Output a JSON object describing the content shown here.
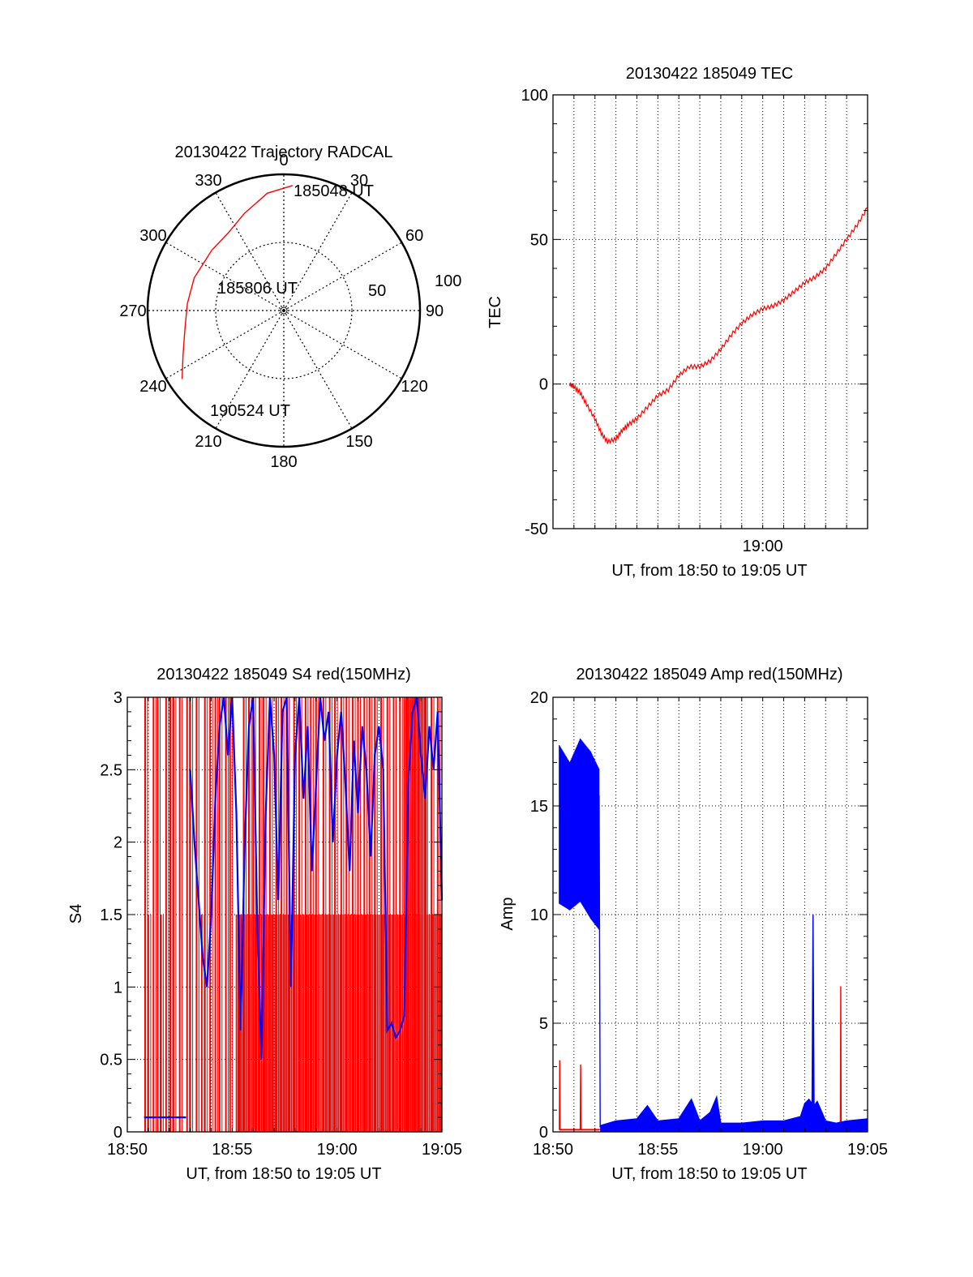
{
  "colors": {
    "red": "#ff0000",
    "blue": "#0000ff",
    "axis": "#000000",
    "grid": "#000000"
  },
  "chart_data": [
    {
      "id": "trajectory",
      "type": "polar",
      "title": "20130422 Trajectory RADCAL",
      "angle_labels": [
        "0",
        "30",
        "60",
        "90",
        "120",
        "150",
        "180",
        "210",
        "240",
        "270",
        "300",
        "330"
      ],
      "radial_labels": [
        "50",
        "100"
      ],
      "rlim": [
        0,
        100
      ],
      "grid": true,
      "series": [
        {
          "color": "#ff0000",
          "points": [
            {
              "az": 4,
              "zen": 92
            },
            {
              "az": 352,
              "zen": 87
            },
            {
              "az": 338,
              "zen": 77
            },
            {
              "az": 324,
              "zen": 70
            },
            {
              "az": 310,
              "zen": 69
            },
            {
              "az": 290,
              "zen": 70
            },
            {
              "az": 274,
              "zen": 71
            },
            {
              "az": 259,
              "zen": 74
            },
            {
              "az": 246,
              "zen": 81
            },
            {
              "az": 236,
              "zen": 90
            }
          ]
        }
      ],
      "annotations": [
        "185048 UT",
        "185806 UT",
        "190524 UT"
      ]
    },
    {
      "id": "tec",
      "type": "line",
      "title": "20130422 185049 TEC",
      "xlabel": "UT, from 18:50 to 19:05 UT",
      "ylabel": "TEC",
      "xlim": [
        0,
        15
      ],
      "x_unit": "minutes after 18:50",
      "ylim": [
        -50,
        100
      ],
      "xticks": [
        {
          "x": 10,
          "label": "19:00"
        }
      ],
      "yticks": [
        {
          "y": -50,
          "label": "-50"
        },
        {
          "y": 0,
          "label": "0"
        },
        {
          "y": 50,
          "label": "50"
        },
        {
          "y": 100,
          "label": "100"
        }
      ],
      "grid": true,
      "series": [
        {
          "color": "#ff0000",
          "x": [
            0.8,
            1.0,
            1.3,
            1.6,
            2.0,
            2.3,
            2.6,
            3.0,
            3.3,
            3.6,
            4.0,
            4.5,
            5.0,
            5.5,
            6.0,
            6.5,
            7.0,
            7.5,
            8.0,
            8.5,
            9.0,
            9.5,
            10.0,
            10.5,
            11.0,
            11.5,
            12.0,
            12.5,
            13.0,
            13.5,
            14.0,
            14.5,
            15.0
          ],
          "y": [
            0,
            -1,
            -3,
            -7,
            -12,
            -17,
            -20,
            -19,
            -16,
            -14,
            -12,
            -8,
            -4,
            -2,
            3,
            6,
            6,
            8,
            12,
            17,
            21,
            24,
            26,
            27,
            29,
            32,
            35,
            37,
            40,
            45,
            50,
            55,
            61
          ]
        }
      ]
    },
    {
      "id": "s4",
      "type": "line",
      "title": "20130422 185049 S4 red(150MHz)",
      "xlabel": "UT, from 18:50 to 19:05 UT",
      "ylabel": "S4",
      "xlim": [
        0,
        15
      ],
      "x_unit": "minutes after 18:50",
      "ylim": [
        0,
        3
      ],
      "xticks": [
        {
          "x": 0,
          "label": "18:50"
        },
        {
          "x": 5,
          "label": "18:55"
        },
        {
          "x": 10,
          "label": "19:00"
        },
        {
          "x": 15,
          "label": "19:05"
        }
      ],
      "yticks": [
        {
          "y": 0,
          "label": "0"
        },
        {
          "y": 0.5,
          "label": "0.5"
        },
        {
          "y": 1,
          "label": "1"
        },
        {
          "y": 1.5,
          "label": "1.5"
        },
        {
          "y": 2,
          "label": "2"
        },
        {
          "y": 2.5,
          "label": "2.5"
        },
        {
          "y": 3,
          "label": "3"
        }
      ],
      "grid": true,
      "series": [
        {
          "color": "#ff0000",
          "style": "spikes",
          "x": [
            0.85,
            1.0,
            1.25,
            1.45,
            1.6,
            1.85,
            2.05,
            2.2,
            2.5,
            2.85,
            3.0,
            3.3,
            3.55,
            3.7,
            3.95,
            4.2,
            4.4,
            4.7,
            4.9,
            5.3,
            5.55,
            5.8,
            6.0,
            6.3,
            6.5,
            6.8,
            7.1,
            7.35,
            7.6,
            7.95,
            8.2,
            8.5,
            8.75,
            9.0,
            9.35,
            9.65,
            9.9,
            10.2,
            10.45,
            10.75,
            11.0,
            11.3,
            11.55,
            11.8,
            12.1,
            12.4,
            12.7,
            13.0,
            13.3,
            13.6,
            13.9,
            14.2,
            14.5,
            14.8
          ],
          "y": [
            3,
            1.5,
            3,
            3,
            1.5,
            3,
            3,
            3,
            3,
            3,
            3,
            3,
            1.5,
            3,
            3,
            3,
            3,
            3,
            3,
            1.5,
            3,
            3,
            3,
            3,
            3,
            3,
            3,
            3,
            3,
            3,
            3,
            3,
            3,
            3,
            3,
            3,
            3,
            3,
            3,
            3,
            3,
            3,
            3,
            3,
            3,
            3,
            3,
            3,
            3,
            3,
            3,
            3,
            3,
            3
          ]
        },
        {
          "color": "#ff0000",
          "style": "fill",
          "fills": [
            {
              "x0": 5.2,
              "x1": 15.0,
              "y": 1.5
            },
            {
              "x0": 13.2,
              "x1": 14.3,
              "y": 3
            }
          ]
        },
        {
          "color": "#0000ff",
          "x": [
            0.8,
            1.2,
            1.6,
            2.0,
            2.4,
            2.8,
            2.9,
            3.0,
            3.2,
            3.4,
            3.6,
            3.8,
            4.0,
            4.2,
            4.4,
            4.6,
            4.8,
            5.0,
            5.2,
            5.4,
            5.6,
            5.8,
            6.0,
            6.2,
            6.4,
            6.6,
            6.8,
            7.0,
            7.2,
            7.4,
            7.6,
            7.8,
            8.0,
            8.2,
            8.4,
            8.6,
            8.8,
            9.0,
            9.2,
            9.4,
            9.6,
            9.8,
            10.0,
            10.2,
            10.4,
            10.6,
            10.8,
            11.0,
            11.2,
            11.4,
            11.6,
            11.8,
            12.0,
            12.2,
            12.4,
            12.6,
            12.8,
            13.0,
            13.2,
            13.4,
            13.6,
            13.8,
            14.0,
            14.2,
            14.4,
            14.6,
            14.8,
            15.0
          ],
          "y": [
            0.1,
            0.1,
            0.1,
            0.1,
            0.1,
            0.1,
            null,
            2.5,
            2.0,
            1.6,
            1.2,
            1.0,
            1.5,
            2.3,
            2.8,
            3.0,
            2.6,
            3.0,
            2.2,
            0.7,
            2.0,
            2.8,
            3.0,
            1.4,
            0.5,
            2.2,
            3.0,
            2.6,
            1.6,
            2.9,
            3.0,
            1.0,
            2.6,
            3.0,
            2.3,
            2.8,
            1.8,
            2.4,
            3.0,
            2.7,
            2.9,
            2.0,
            2.6,
            2.9,
            2.4,
            1.8,
            2.7,
            2.2,
            2.8,
            2.5,
            1.9,
            2.6,
            2.8,
            2.5,
            0.7,
            0.75,
            0.65,
            0.7,
            0.8,
            2.4,
            2.9,
            3.0,
            2.6,
            2.3,
            2.8,
            2.5,
            2.9,
            1.6
          ]
        }
      ]
    },
    {
      "id": "amp",
      "type": "line",
      "title": "20130422 185049 Amp red(150MHz)",
      "xlabel": "UT, from 18:50 to 19:05 UT",
      "ylabel": "Amp",
      "xlim": [
        0,
        15
      ],
      "x_unit": "minutes after 18:50",
      "ylim": [
        0,
        20
      ],
      "xticks": [
        {
          "x": 0,
          "label": "18:50"
        },
        {
          "x": 5,
          "label": "18:55"
        },
        {
          "x": 10,
          "label": "19:00"
        },
        {
          "x": 15,
          "label": "19:05"
        }
      ],
      "yticks": [
        {
          "y": 0,
          "label": "0"
        },
        {
          "y": 5,
          "label": "5"
        },
        {
          "y": 10,
          "label": "10"
        },
        {
          "y": 15,
          "label": "15"
        },
        {
          "y": 20,
          "label": "20"
        }
      ],
      "grid": true,
      "series": [
        {
          "color": "#ff0000",
          "x": [
            0.3,
            0.32,
            0.34,
            1.3,
            1.32,
            1.34,
            13.7,
            13.72,
            13.74
          ],
          "y": [
            0.1,
            3.3,
            0.1,
            0.1,
            3.1,
            0.1,
            0.2,
            6.7,
            0.2
          ],
          "baseline": {
            "x0": 0.3,
            "x1": 2.2,
            "y": 0.1
          }
        },
        {
          "color": "#0000ff",
          "band": [
            {
              "x": 0.3,
              "lo": 10.5,
              "hi": 17.8
            },
            {
              "x": 0.8,
              "lo": 10.2,
              "hi": 17.0
            },
            {
              "x": 1.3,
              "lo": 10.6,
              "hi": 18.1
            },
            {
              "x": 1.8,
              "lo": 9.8,
              "hi": 17.5
            },
            {
              "x": 2.2,
              "lo": 9.3,
              "hi": 16.7
            }
          ],
          "x": [
            2.2,
            2.25,
            2.3,
            3,
            4,
            4.5,
            5,
            6,
            6.6,
            7,
            7.5,
            7.8,
            8,
            9,
            10,
            11,
            11.8,
            12,
            12.2,
            12.35,
            12.4,
            12.45,
            12.6,
            13,
            13.5,
            14,
            15
          ],
          "y": [
            15.5,
            0.2,
            0.3,
            0.5,
            0.6,
            1.2,
            0.5,
            0.6,
            1.5,
            0.5,
            0.9,
            1.6,
            0.4,
            0.4,
            0.5,
            0.5,
            0.7,
            1.3,
            1.5,
            1.3,
            10.0,
            1.2,
            1.4,
            0.5,
            0.4,
            0.5,
            0.6
          ]
        }
      ]
    }
  ]
}
